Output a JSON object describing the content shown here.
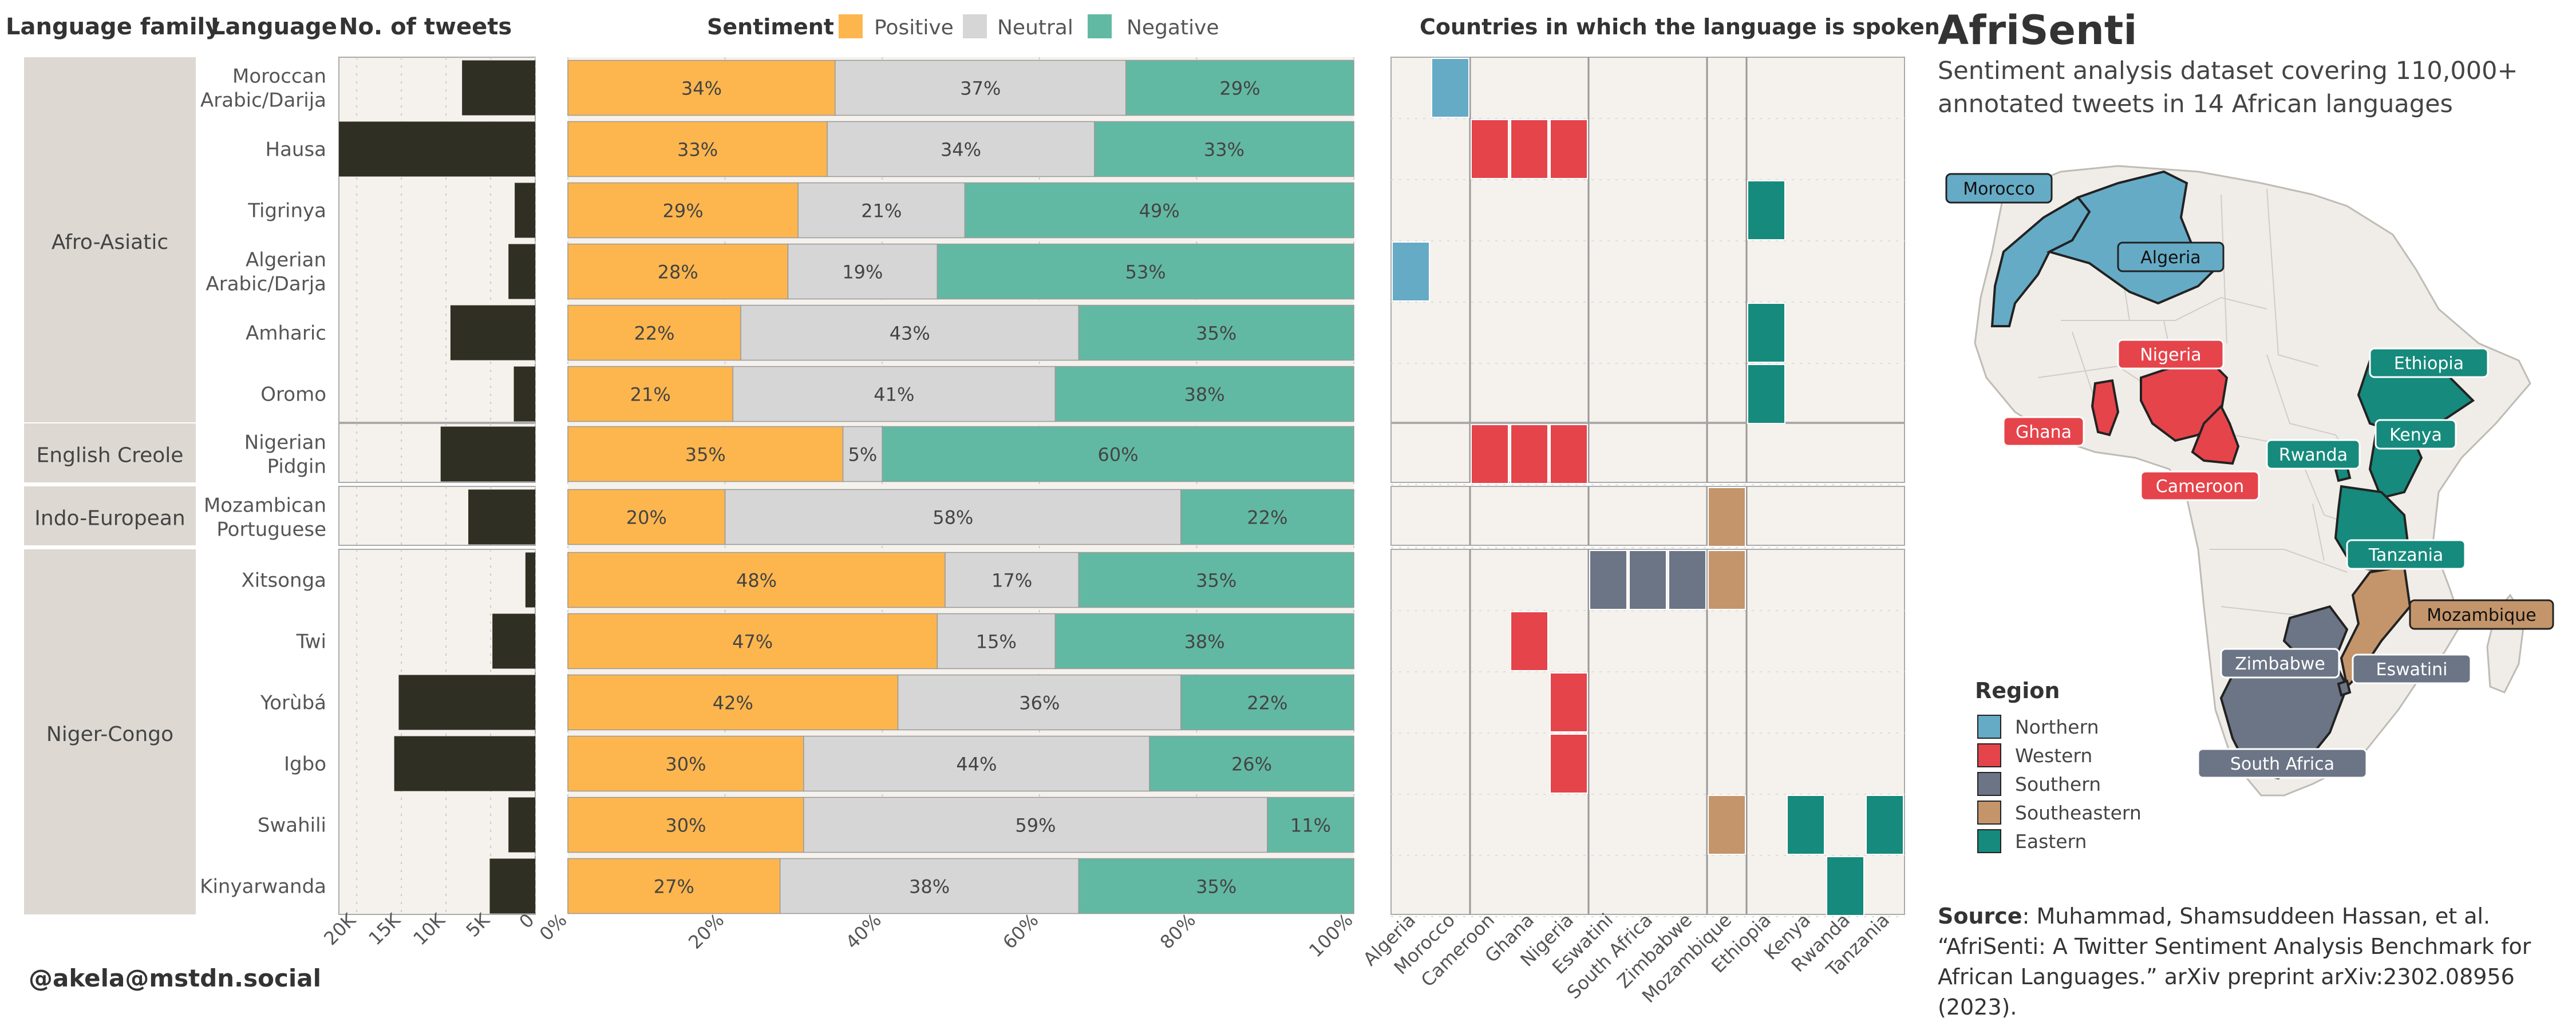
{
  "header": {
    "language_family": "Language family",
    "language": "Language",
    "num_tweets": "No. of tweets",
    "sentiment": "Sentiment",
    "countries": "Countries in which the language is spoken"
  },
  "colors": {
    "positive": "#FDB64E",
    "neutral": "#D6D6D6",
    "negative": "#62B9A3",
    "tweets_bar": "#2F2F23",
    "panel_bg": "#F5F1EC",
    "family_bg": "#DDD8D2",
    "Northern": "#65ABC6",
    "Western": "#E5444B",
    "Southern": "#6C7586",
    "Southeastern": "#C4956B",
    "Eastern": "#168A7C"
  },
  "legend": {
    "positive": "Positive",
    "neutral": "Neutral",
    "negative": "Negative"
  },
  "families": [
    {
      "name": "Afro-Asiatic",
      "rows": 6
    },
    {
      "name": "English Creole",
      "rows": 1
    },
    {
      "name": "Indo-European",
      "rows": 1
    },
    {
      "name": "Niger-Congo",
      "rows": 6
    }
  ],
  "chart_data": {
    "type": "bar",
    "languages": [
      "Moroccan Arabic/Darija",
      "Hausa",
      "Tigrinya",
      "Algerian Arabic/Darja",
      "Amharic",
      "Oromo",
      "Nigerian Pidgin",
      "Mozambican Portuguese",
      "Xitsonga",
      "Twi",
      "Yorùbá",
      "Igbo",
      "Swahili",
      "Kinyarwanda"
    ],
    "language_lines": [
      [
        "Moroccan",
        "Arabic/Darija"
      ],
      [
        "Hausa"
      ],
      [
        "Tigrinya"
      ],
      [
        "Algerian",
        "Arabic/Darja"
      ],
      [
        "Amharic"
      ],
      [
        "Oromo"
      ],
      [
        "Nigerian",
        "Pidgin"
      ],
      [
        "Mozambican",
        "Portuguese"
      ],
      [
        "Xitsonga"
      ],
      [
        "Twi"
      ],
      [
        "Yorùbá"
      ],
      [
        "Igbo"
      ],
      [
        "Swahili"
      ],
      [
        "Kinyarwanda"
      ]
    ],
    "tweets": [
      8200,
      22000,
      2300,
      3000,
      9500,
      2400,
      10600,
      7500,
      1100,
      4800,
      15300,
      15800,
      3000,
      5100
    ],
    "tweets_axis": {
      "ticks": [
        20000,
        15000,
        10000,
        5000,
        0
      ],
      "tick_labels": [
        "20K",
        "15K",
        "10K",
        "5K",
        "0"
      ],
      "max": 22000
    },
    "sentiment": {
      "positive": [
        34,
        33,
        29,
        28,
        22,
        21,
        35,
        20,
        48,
        47,
        42,
        30,
        30,
        27
      ],
      "neutral": [
        37,
        34,
        21,
        19,
        43,
        41,
        5,
        58,
        17,
        15,
        36,
        44,
        59,
        38
      ],
      "negative": [
        29,
        33,
        49,
        53,
        35,
        38,
        60,
        22,
        35,
        38,
        22,
        26,
        11,
        35
      ]
    },
    "sentiment_axis": {
      "ticks": [
        0,
        20,
        40,
        60,
        80,
        100
      ],
      "tick_labels": [
        "0%",
        "20%",
        "40%",
        "60%",
        "80%",
        "100%"
      ]
    },
    "countries": [
      "Algeria",
      "Morocco",
      "Cameroon",
      "Ghana",
      "Nigeria",
      "Eswatini",
      "South Africa",
      "Zimbabwe",
      "Mozambique",
      "Ethiopia",
      "Kenya",
      "Rwanda",
      "Tanzania"
    ],
    "country_region": [
      "Northern",
      "Northern",
      "Western",
      "Western",
      "Western",
      "Southern",
      "Southern",
      "Southern",
      "Southeastern",
      "Eastern",
      "Eastern",
      "Eastern",
      "Eastern"
    ],
    "country_groups": [
      2,
      3,
      3,
      1,
      4
    ],
    "spoken": [
      [
        1
      ],
      [
        2,
        3,
        4
      ],
      [
        9
      ],
      [
        0
      ],
      [
        9
      ],
      [
        9
      ],
      [
        2,
        3,
        4
      ],
      [
        8
      ],
      [
        5,
        6,
        7,
        8
      ],
      [
        3
      ],
      [
        4
      ],
      [
        4
      ],
      [
        8,
        10,
        12
      ],
      [
        11
      ]
    ]
  },
  "map": {
    "title": "AfriSenti",
    "subtitle": "Sentiment analysis dataset covering 110,000+ annotated tweets in 14 African languages",
    "labels": [
      {
        "name": "Morocco",
        "region": "Northern"
      },
      {
        "name": "Algeria",
        "region": "Northern"
      },
      {
        "name": "Nigeria",
        "region": "Western"
      },
      {
        "name": "Ghana",
        "region": "Western"
      },
      {
        "name": "Cameroon",
        "region": "Western"
      },
      {
        "name": "Ethiopia",
        "region": "Eastern"
      },
      {
        "name": "Kenya",
        "region": "Eastern"
      },
      {
        "name": "Rwanda",
        "region": "Eastern"
      },
      {
        "name": "Tanzania",
        "region": "Eastern"
      },
      {
        "name": "Mozambique",
        "region": "Southeastern"
      },
      {
        "name": "Zimbabwe",
        "region": "Southern"
      },
      {
        "name": "Eswatini",
        "region": "Southern"
      },
      {
        "name": "South Africa",
        "region": "Southern"
      }
    ],
    "legend_title": "Region",
    "regions": [
      "Northern",
      "Western",
      "Southern",
      "Southeastern",
      "Eastern"
    ]
  },
  "source": {
    "label": "Source",
    "text": ": Muhammad, Shamsuddeen Hassan, et al. “AfriSenti: A Twitter Sentiment Analysis Benchmark for African Languages.” arXiv preprint arXiv:2302.08956  (2023)."
  },
  "footer": {
    "handle": "@akela@mstdn.social"
  }
}
